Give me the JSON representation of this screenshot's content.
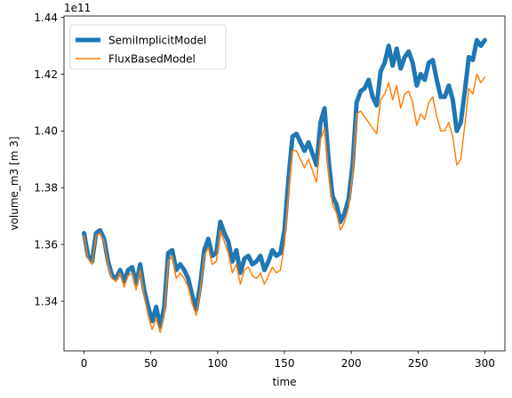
{
  "chart_data": {
    "type": "line",
    "xlabel": "time",
    "ylabel": "volume_m3 [m 3]",
    "y_offset_label": "1e11",
    "y_scale": 100000000000,
    "xlim": [
      -15,
      315
    ],
    "ylim": [
      1.3225,
      1.4405
    ],
    "xticks": [
      0,
      50,
      100,
      150,
      200,
      250,
      300
    ],
    "yticks": [
      1.34,
      1.36,
      1.38,
      1.4,
      1.42,
      1.44
    ],
    "ytick_labels": [
      "1.34",
      "1.36",
      "1.38",
      "1.40",
      "1.42",
      "1.44"
    ],
    "grid": false,
    "legend_position": "top-left",
    "series": [
      {
        "name": "SemiImplicitModel",
        "color": "#1f77b4",
        "x": [
          0,
          3,
          6,
          9,
          12,
          15,
          18,
          21,
          24,
          27,
          30,
          33,
          36,
          39,
          42,
          45,
          48,
          51,
          54,
          57,
          60,
          63,
          66,
          69,
          72,
          75,
          78,
          81,
          84,
          87,
          90,
          93,
          96,
          99,
          102,
          105,
          108,
          111,
          114,
          117,
          120,
          123,
          126,
          129,
          132,
          135,
          138,
          141,
          144,
          147,
          150,
          153,
          156,
          159,
          162,
          165,
          168,
          171,
          174,
          177,
          180,
          183,
          186,
          189,
          192,
          195,
          198,
          201,
          204,
          207,
          210,
          213,
          216,
          219,
          222,
          225,
          228,
          231,
          234,
          237,
          240,
          243,
          246,
          249,
          252,
          255,
          258,
          261,
          264,
          267,
          270,
          273,
          276,
          279,
          282,
          285,
          288,
          291,
          294,
          297,
          300
        ],
        "values": [
          1.364,
          1.356,
          1.354,
          1.364,
          1.365,
          1.362,
          1.354,
          1.349,
          1.348,
          1.351,
          1.347,
          1.351,
          1.352,
          1.346,
          1.353,
          1.344,
          1.338,
          1.333,
          1.338,
          1.331,
          1.338,
          1.357,
          1.358,
          1.351,
          1.353,
          1.351,
          1.348,
          1.342,
          1.337,
          1.346,
          1.358,
          1.362,
          1.356,
          1.357,
          1.368,
          1.364,
          1.361,
          1.354,
          1.358,
          1.35,
          1.355,
          1.356,
          1.353,
          1.354,
          1.356,
          1.351,
          1.354,
          1.358,
          1.356,
          1.357,
          1.365,
          1.383,
          1.398,
          1.399,
          1.396,
          1.393,
          1.396,
          1.392,
          1.388,
          1.403,
          1.408,
          1.39,
          1.377,
          1.374,
          1.368,
          1.371,
          1.376,
          1.388,
          1.41,
          1.414,
          1.415,
          1.418,
          1.412,
          1.409,
          1.421,
          1.424,
          1.43,
          1.423,
          1.429,
          1.422,
          1.426,
          1.428,
          1.424,
          1.416,
          1.42,
          1.418,
          1.424,
          1.425,
          1.418,
          1.412,
          1.412,
          1.416,
          1.411,
          1.4,
          1.403,
          1.414,
          1.426,
          1.425,
          1.432,
          1.43,
          1.432
        ]
      },
      {
        "name": "FluxBasedModel",
        "color": "#ff7f0e",
        "x": [
          0,
          3,
          6,
          9,
          12,
          15,
          18,
          21,
          24,
          27,
          30,
          33,
          36,
          39,
          42,
          45,
          48,
          51,
          54,
          57,
          60,
          63,
          66,
          69,
          72,
          75,
          78,
          81,
          84,
          87,
          90,
          93,
          96,
          99,
          102,
          105,
          108,
          111,
          114,
          117,
          120,
          123,
          126,
          129,
          132,
          135,
          138,
          141,
          144,
          147,
          150,
          153,
          156,
          159,
          162,
          165,
          168,
          171,
          174,
          177,
          180,
          183,
          186,
          189,
          192,
          195,
          198,
          201,
          204,
          207,
          210,
          213,
          216,
          219,
          222,
          225,
          228,
          231,
          234,
          237,
          240,
          243,
          246,
          249,
          252,
          255,
          258,
          261,
          264,
          267,
          270,
          273,
          276,
          279,
          282,
          285,
          288,
          291,
          294,
          297,
          300
        ],
        "values": [
          1.363,
          1.355,
          1.353,
          1.363,
          1.364,
          1.361,
          1.353,
          1.348,
          1.347,
          1.35,
          1.345,
          1.349,
          1.35,
          1.344,
          1.351,
          1.342,
          1.335,
          1.33,
          1.334,
          1.329,
          1.335,
          1.354,
          1.356,
          1.348,
          1.35,
          1.348,
          1.345,
          1.339,
          1.335,
          1.344,
          1.356,
          1.359,
          1.353,
          1.354,
          1.365,
          1.361,
          1.357,
          1.35,
          1.353,
          1.346,
          1.351,
          1.352,
          1.349,
          1.348,
          1.35,
          1.346,
          1.349,
          1.352,
          1.35,
          1.351,
          1.36,
          1.378,
          1.393,
          1.393,
          1.39,
          1.387,
          1.39,
          1.386,
          1.382,
          1.397,
          1.401,
          1.385,
          1.374,
          1.371,
          1.365,
          1.368,
          1.373,
          1.385,
          1.406,
          1.407,
          1.405,
          1.403,
          1.401,
          1.399,
          1.411,
          1.413,
          1.417,
          1.411,
          1.416,
          1.408,
          1.413,
          1.414,
          1.41,
          1.402,
          1.406,
          1.404,
          1.41,
          1.412,
          1.405,
          1.4,
          1.4,
          1.403,
          1.398,
          1.388,
          1.39,
          1.402,
          1.415,
          1.413,
          1.42,
          1.417,
          1.419
        ]
      }
    ]
  }
}
